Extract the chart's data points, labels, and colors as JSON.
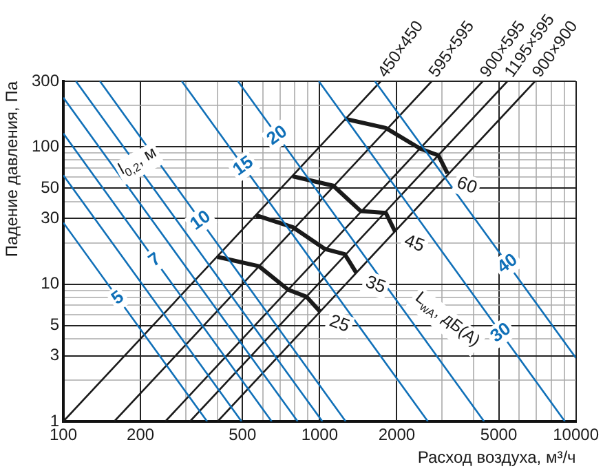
{
  "chart_data": {
    "type": "line",
    "xlabel": "Расход воздуха, м³/ч",
    "ylabel": "Падение давления, Па",
    "log": "xy",
    "grid": true,
    "xlim": [
      100,
      10000
    ],
    "ylim": [
      1,
      300
    ],
    "xticks": [
      100,
      200,
      {
        "value": 300,
        "label": null
      },
      {
        "value": 400,
        "label": null
      },
      500,
      {
        "value": 600,
        "label": null
      },
      {
        "value": 700,
        "label": null
      },
      {
        "value": 800,
        "label": null
      },
      {
        "value": 900,
        "label": null
      },
      1000,
      2000,
      {
        "value": 3000,
        "label": null
      },
      {
        "value": 4000,
        "label": null
      },
      5000,
      {
        "value": 6000,
        "label": null
      },
      {
        "value": 7000,
        "label": null
      },
      {
        "value": 8000,
        "label": null
      },
      {
        "value": 9000,
        "label": null
      },
      10000
    ],
    "yticks": [
      1,
      {
        "value": 2,
        "label": null
      },
      3,
      {
        "value": 4,
        "label": null
      },
      5,
      {
        "value": 6,
        "label": null
      },
      {
        "value": 7,
        "label": null
      },
      {
        "value": 8,
        "label": null
      },
      {
        "value": 9,
        "label": null
      },
      10,
      {
        "value": 20,
        "label": null
      },
      30,
      {
        "value": 40,
        "label": null
      },
      50,
      {
        "value": 60,
        "label": null
      },
      {
        "value": 70,
        "label": null
      },
      {
        "value": 80,
        "label": null
      },
      {
        "value": 90,
        "label": null
      },
      100,
      {
        "value": 200,
        "label": null
      },
      300
    ],
    "series": [
      {
        "name": "5",
        "color": "#1070b8",
        "x": [
          100,
          364
        ],
        "values": [
          28,
          1
        ]
      },
      {
        "color": "#1070b8",
        "x": [
          100,
          496
        ],
        "values": [
          62,
          1
        ]
      },
      {
        "name": "7",
        "color": "#1070b8",
        "x": [
          100,
          650
        ],
        "values": [
          125,
          1
        ]
      },
      {
        "color": "#1070b8",
        "x": [
          100,
          821
        ],
        "values": [
          228,
          1
        ]
      },
      {
        "color": "#1070b8",
        "x": [
          112,
          1025
        ],
        "values": [
          300,
          1
        ]
      },
      {
        "name": "10",
        "color": "#1070b8",
        "x": [
          139,
          1264
        ],
        "values": [
          300,
          1
        ]
      },
      {
        "name": "15",
        "color": "#1070b8",
        "x": [
          290,
          2645
        ],
        "values": [
          300,
          1
        ]
      },
      {
        "name": "20",
        "color": "#1070b8",
        "x": [
          480,
          4383
        ],
        "values": [
          300,
          1
        ]
      },
      {
        "name": "30",
        "color": "#1070b8",
        "x": [
          993,
          9060
        ],
        "values": [
          300,
          1
        ]
      },
      {
        "name": "40",
        "color": "#1070b8",
        "x": [
          1644,
          10000
        ],
        "values": [
          300,
          2.9
        ]
      },
      {
        "name": "450×450",
        "color": "#1a1a1a",
        "x": [
          100,
          1732
        ],
        "values": [
          1,
          300
        ]
      },
      {
        "name": "595×595",
        "color": "#1a1a1a",
        "x": [
          158,
          2737
        ],
        "values": [
          1,
          300
        ]
      },
      {
        "name": "900×595",
        "color": "#1a1a1a",
        "x": [
          250,
          4330
        ],
        "values": [
          1,
          300
        ]
      },
      {
        "name": "1195×595",
        "color": "#1a1a1a",
        "x": [
          312,
          5404
        ],
        "values": [
          1,
          300
        ]
      },
      {
        "name": "900×900",
        "color": "#1a1a1a",
        "x": [
          400,
          6928
        ],
        "values": [
          1,
          300
        ]
      },
      {
        "name": "25",
        "color": "#1a1a1a",
        "x": [
          399,
          580,
          754,
          888,
          1004
        ],
        "values": [
          15.8,
          13.5,
          9.1,
          8.1,
          6.3
        ]
      },
      {
        "name": "35",
        "color": "#1a1a1a",
        "x": [
          565,
          785,
          1050,
          1253,
          1390
        ],
        "values": [
          31.7,
          26,
          18,
          16.5,
          12.1
        ]
      },
      {
        "name": "45",
        "color": "#1a1a1a",
        "x": [
          785,
          1131,
          1447,
          1812,
          1968
        ],
        "values": [
          61,
          52,
          34,
          33,
          24.2
        ]
      },
      {
        "name": "60",
        "color": "#1a1a1a",
        "x": [
          1253,
          1813,
          2466,
          2909,
          3155
        ],
        "values": [
          160,
          137,
          97,
          86.4,
          64
        ]
      }
    ],
    "annotations": [
      "l$_{0,2}$, м",
      "L$_{wA}$, дБ(A)"
    ]
  }
}
